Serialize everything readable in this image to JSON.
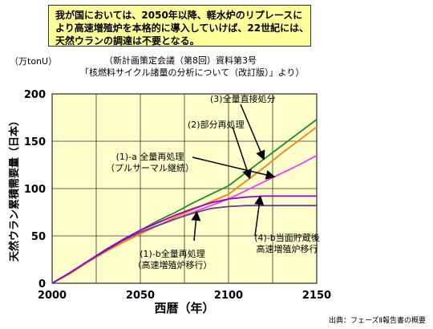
{
  "note": {
    "line1": "我が国においては、2050年以降、軽水炉のリプレースに",
    "line2": "より高速増殖炉を本格的に導入していけば、22世紀には、",
    "line3": "天然ウランの調達は不要となる。"
  },
  "unit": "（万tonU）",
  "source_title": {
    "line1": "（新計画策定会議（第8回）資料第3号",
    "line2": "「核燃料サイクル諸量の分析について（改訂版）」より）"
  },
  "footnote": "出典：フェーズⅡ報告書の概要",
  "colors": {
    "plot_bg": "#ffffcc",
    "grid": "#333333",
    "direct": "#228b22",
    "reprocess": "#ff7f00",
    "full_thermal": "#ff33ff",
    "full_fbr": "#6a3d9a",
    "storage_fbr": "#9400d3"
  },
  "chart_data": {
    "type": "line",
    "xlabel": "西暦（年）",
    "ylabel": "天然ウラン累積需要量（日本）",
    "xlim": [
      2000,
      2150
    ],
    "ylim": [
      0,
      200
    ],
    "x_ticks": [
      "2000",
      "2050",
      "2100",
      "2150"
    ],
    "y_ticks": [
      "0",
      "50",
      "100",
      "150",
      "200"
    ],
    "grid": true,
    "series": [
      {
        "name": "(3)全量直接処分",
        "color": "#228b22",
        "points": [
          [
            2000,
            0
          ],
          [
            2010,
            11
          ],
          [
            2020,
            23
          ],
          [
            2030,
            35
          ],
          [
            2040,
            46
          ],
          [
            2050,
            56
          ],
          [
            2060,
            66
          ],
          [
            2070,
            75
          ],
          [
            2080,
            85
          ],
          [
            2090,
            94
          ],
          [
            2100,
            103
          ],
          [
            2110,
            117
          ],
          [
            2120,
            131
          ],
          [
            2130,
            145
          ],
          [
            2140,
            159
          ],
          [
            2150,
            173
          ]
        ]
      },
      {
        "name": "(2)部分再処理",
        "color": "#ff7f00",
        "points": [
          [
            2000,
            0
          ],
          [
            2010,
            10
          ],
          [
            2020,
            22
          ],
          [
            2030,
            33
          ],
          [
            2040,
            43
          ],
          [
            2050,
            52
          ],
          [
            2060,
            61
          ],
          [
            2070,
            70
          ],
          [
            2080,
            78
          ],
          [
            2090,
            86
          ],
          [
            2100,
            94
          ],
          [
            2110,
            108
          ],
          [
            2120,
            122
          ],
          [
            2130,
            137
          ],
          [
            2140,
            151
          ],
          [
            2150,
            165
          ]
        ]
      },
      {
        "name": "(1)-a 全量再処理",
        "label_line2": "（プルサーマル継続）",
        "color": "#ff33ff",
        "points": [
          [
            2000,
            0
          ],
          [
            2010,
            11
          ],
          [
            2020,
            23
          ],
          [
            2030,
            34
          ],
          [
            2040,
            45
          ],
          [
            2050,
            54
          ],
          [
            2060,
            61
          ],
          [
            2070,
            68
          ],
          [
            2080,
            75
          ],
          [
            2090,
            82
          ],
          [
            2100,
            89
          ],
          [
            2110,
            98
          ],
          [
            2120,
            107
          ],
          [
            2130,
            116
          ],
          [
            2140,
            125
          ],
          [
            2150,
            135
          ]
        ]
      },
      {
        "name": "(1)-b全量再処理",
        "label_line2": "（高速増殖炉移行）",
        "color": "#6a3d9a",
        "points": [
          [
            2000,
            0
          ],
          [
            2010,
            11
          ],
          [
            2020,
            23
          ],
          [
            2030,
            34
          ],
          [
            2040,
            45
          ],
          [
            2050,
            54
          ],
          [
            2060,
            61
          ],
          [
            2070,
            68
          ],
          [
            2080,
            74
          ],
          [
            2090,
            79
          ],
          [
            2100,
            81
          ],
          [
            2110,
            82
          ],
          [
            2120,
            82
          ],
          [
            2130,
            82
          ],
          [
            2140,
            82
          ],
          [
            2150,
            82
          ]
        ]
      },
      {
        "name": "(4)-b当面貯蔵後",
        "label_line2": "高速増殖炉移行",
        "color": "#9400d3",
        "points": [
          [
            2000,
            0
          ],
          [
            2010,
            11
          ],
          [
            2020,
            23
          ],
          [
            2030,
            35
          ],
          [
            2040,
            46
          ],
          [
            2050,
            56
          ],
          [
            2060,
            64
          ],
          [
            2070,
            72
          ],
          [
            2080,
            79
          ],
          [
            2090,
            85
          ],
          [
            2100,
            89
          ],
          [
            2110,
            91
          ],
          [
            2120,
            92
          ],
          [
            2130,
            92
          ],
          [
            2140,
            92
          ],
          [
            2150,
            92
          ]
        ]
      }
    ]
  }
}
